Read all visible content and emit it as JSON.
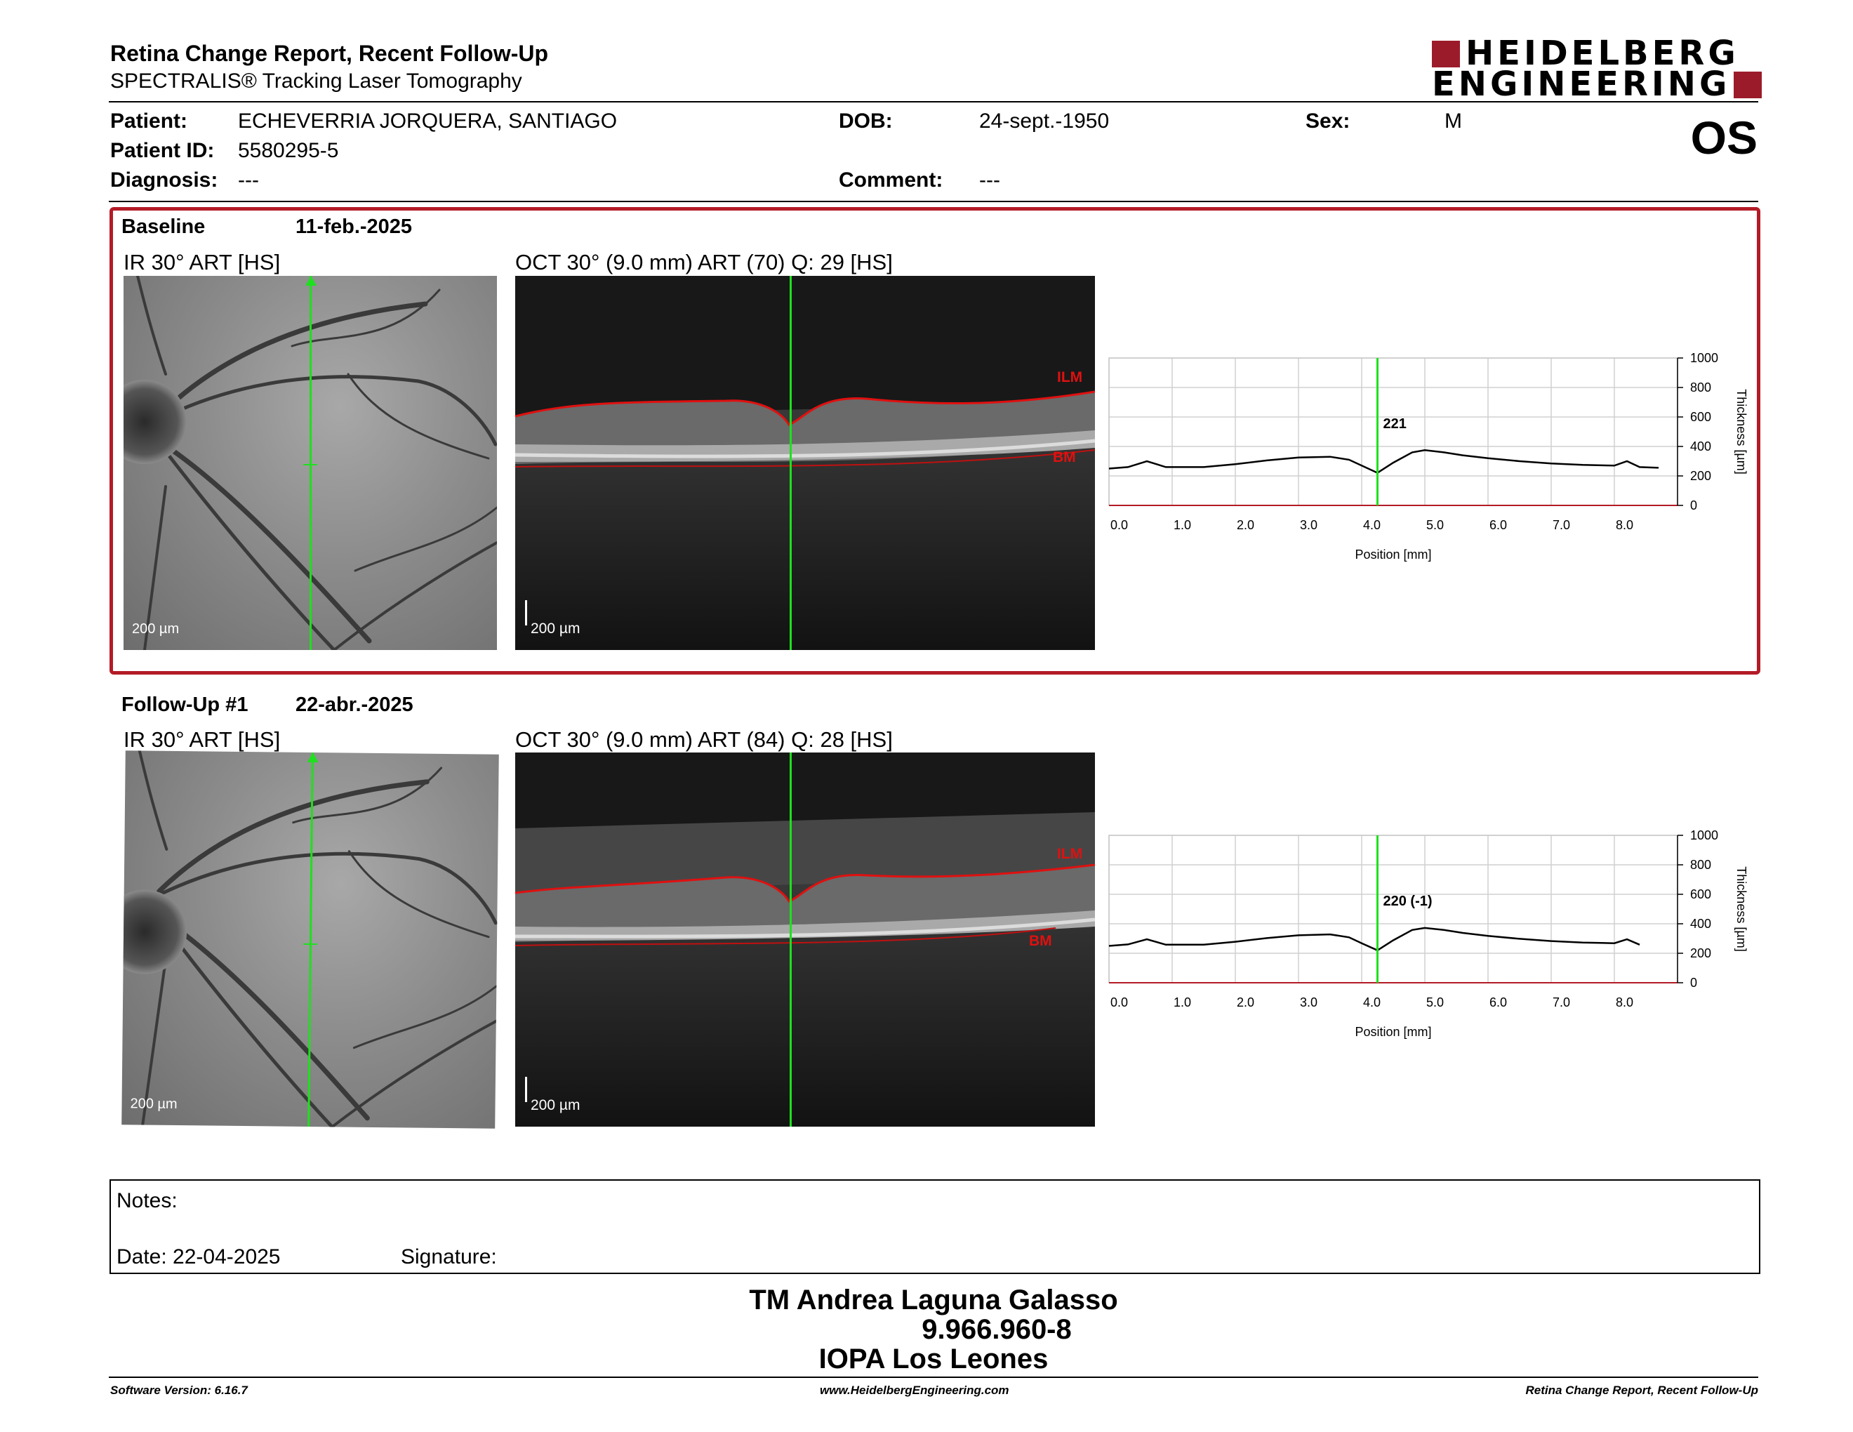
{
  "header": {
    "title": "Retina Change Report, Recent Follow-Up",
    "subtitle": "SPECTRALIS® Tracking Laser Tomography",
    "logo_line1": "HEIDELBERG",
    "logo_line2": "ENGINEERING",
    "eye": "OS"
  },
  "patient": {
    "patient_label": "Patient:",
    "patient_name": "ECHEVERRIA JORQUERA, SANTIAGO",
    "id_label": "Patient ID:",
    "id_value": "5580295-5",
    "diagnosis_label": "Diagnosis:",
    "diagnosis_value": "---",
    "dob_label": "DOB:",
    "dob_value": "24-sept.-1950",
    "comment_label": "Comment:",
    "comment_value": "---",
    "sex_label": "Sex:",
    "sex_value": "M"
  },
  "baseline": {
    "label": "Baseline",
    "date": "11-feb.-2025",
    "ir_label": "IR 30° ART [HS]",
    "oct_label": "OCT 30° (9.0 mm) ART (70) Q: 29 [HS]",
    "ir_scale": "200 µm",
    "oct_scale": "200 µm",
    "ilm": "ILM",
    "bm": "BM",
    "thickness_value": "221"
  },
  "followup": {
    "label": "Follow-Up #1",
    "date": "22-abr.-2025",
    "ir_label": "IR 30° ART [HS]",
    "oct_label": "OCT 30° (9.0 mm) ART (84) Q: 28 [HS]",
    "ir_scale": "200 µm",
    "oct_scale": "200 µm",
    "ilm": "ILM",
    "bm": "BM",
    "thickness_value": "220 (-1)"
  },
  "chart_data": [
    {
      "type": "line",
      "xlabel": "Position [mm]",
      "ylabel": "Thickness [µm]",
      "xlim": [
        0,
        9.0
      ],
      "ylim": [
        0,
        1000
      ],
      "x_ticks": [
        "0.0",
        "1.0",
        "2.0",
        "3.0",
        "4.0",
        "5.0",
        "6.0",
        "7.0",
        "8.0"
      ],
      "y_ticks": [
        "0",
        "200",
        "400",
        "600",
        "800",
        "1000"
      ],
      "marker_x": 4.25,
      "marker_label": "221",
      "x": [
        0.0,
        0.3,
        0.6,
        0.9,
        1.5,
        2.0,
        2.5,
        3.0,
        3.5,
        3.8,
        4.0,
        4.25,
        4.5,
        4.8,
        5.0,
        5.3,
        5.6,
        6.0,
        6.5,
        7.0,
        7.5,
        8.0,
        8.2,
        8.4,
        8.7
      ],
      "values": [
        250,
        260,
        300,
        260,
        260,
        280,
        305,
        325,
        330,
        310,
        270,
        221,
        290,
        360,
        375,
        360,
        340,
        320,
        300,
        285,
        275,
        270,
        300,
        260,
        255
      ]
    },
    {
      "type": "line",
      "xlabel": "Position [mm]",
      "ylabel": "Thickness [µm]",
      "xlim": [
        0,
        9.0
      ],
      "ylim": [
        0,
        1000
      ],
      "x_ticks": [
        "0.0",
        "1.0",
        "2.0",
        "3.0",
        "4.0",
        "5.0",
        "6.0",
        "7.0",
        "8.0"
      ],
      "y_ticks": [
        "0",
        "200",
        "400",
        "600",
        "800",
        "1000"
      ],
      "marker_x": 4.25,
      "marker_label": "220 (-1)",
      "x": [
        0.0,
        0.3,
        0.6,
        0.9,
        1.5,
        2.0,
        2.5,
        3.0,
        3.5,
        3.8,
        4.0,
        4.25,
        4.5,
        4.8,
        5.0,
        5.3,
        5.6,
        6.0,
        6.5,
        7.0,
        7.5,
        8.0,
        8.2,
        8.4
      ],
      "values": [
        250,
        260,
        295,
        258,
        258,
        278,
        303,
        322,
        328,
        308,
        268,
        220,
        288,
        358,
        372,
        358,
        338,
        318,
        298,
        283,
        273,
        268,
        295,
        258
      ]
    }
  ],
  "notes": {
    "notes_label": "Notes:",
    "date_label": "Date: 22-04-2025",
    "signature_label": "Signature:"
  },
  "operator": {
    "name": "TM Andrea Laguna Galasso",
    "rut": "9.966.960-8",
    "center": "IOPA Los Leones"
  },
  "footer": {
    "version": "Software Version: 6.16.7",
    "website": "www.HeidelbergEngineering.com",
    "report": "Retina Change Report, Recent Follow-Up"
  }
}
